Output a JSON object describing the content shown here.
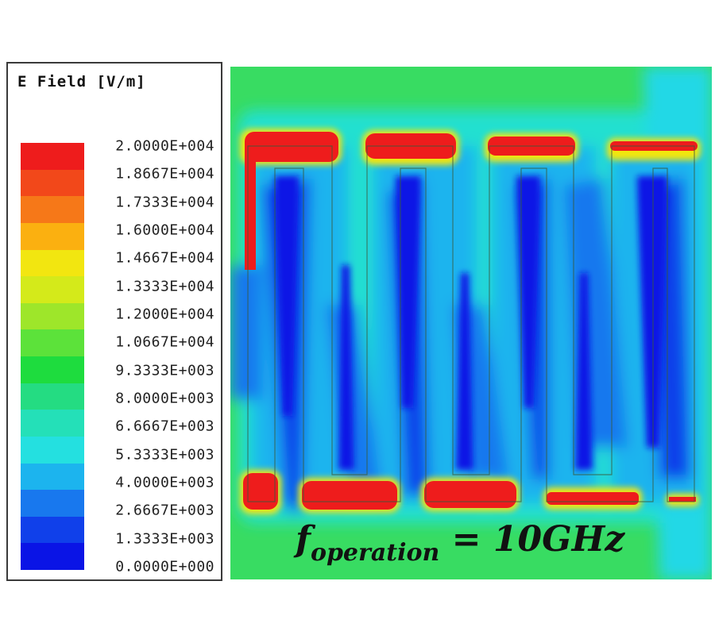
{
  "legend": {
    "title": "E Field [V/m]",
    "colors": [
      "#ee1c1c",
      "#f2481a",
      "#f67818",
      "#fbb010",
      "#f2e610",
      "#d4ea1a",
      "#9ee62a",
      "#5ce23a",
      "#1edc3e",
      "#24dc82",
      "#24e0b8",
      "#24e0e0",
      "#1cb4ee",
      "#1878ee",
      "#1040ea",
      "#0a14e6"
    ],
    "labels": [
      "2.0000E+004",
      "1.8667E+004",
      "1.7333E+004",
      "1.6000E+004",
      "1.4667E+004",
      "1.3333E+004",
      "1.2000E+004",
      "1.0667E+004",
      "9.3333E+003",
      "8.0000E+003",
      "6.6667E+003",
      "5.3333E+003",
      "4.0000E+003",
      "2.6667E+003",
      "1.3333E+003",
      "0.0000E+000"
    ]
  },
  "annotation": {
    "symbol": "f",
    "subscript": "operation",
    "equals": "=",
    "value": "10GHz"
  }
}
